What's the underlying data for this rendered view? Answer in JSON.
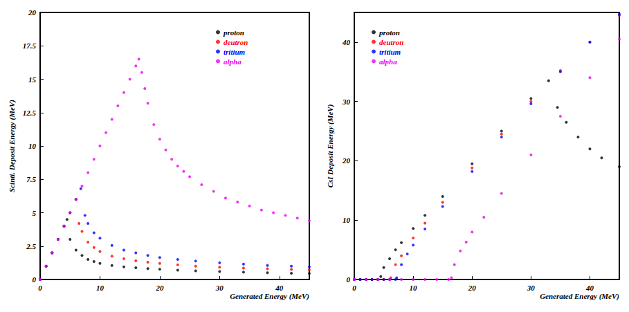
{
  "chart_data": [
    {
      "type": "scatter",
      "x_label": "Generated Energy (MeV)",
      "y_label": "Scinti. Deposit Energy (MeV)",
      "xlim": [
        0,
        45
      ],
      "xticks": [
        0,
        10,
        20,
        30,
        40
      ],
      "ylim": [
        0,
        20
      ],
      "yticks": [
        0,
        2.5,
        5,
        7.5,
        10,
        12.5,
        15,
        17.5,
        20
      ],
      "grid": false,
      "legend": "top-right",
      "marker": "circle",
      "series": [
        {
          "name": "proton",
          "color": "#000000",
          "x": [
            0,
            1,
            2,
            3,
            4,
            4.5,
            5,
            6,
            7,
            8,
            9,
            10,
            12,
            14,
            16,
            18,
            20,
            23,
            26,
            30,
            34,
            38,
            42,
            45
          ],
          "values": [
            0,
            1,
            2,
            3,
            4,
            4.5,
            3.0,
            2.2,
            1.8,
            1.5,
            1.35,
            1.2,
            1.05,
            0.95,
            0.88,
            0.82,
            0.77,
            0.7,
            0.65,
            0.6,
            0.55,
            0.5,
            0.47,
            0.45
          ]
        },
        {
          "name": "deutron",
          "color": "#ff0000",
          "x": [
            0,
            1,
            2,
            3,
            4,
            5,
            6,
            6.5,
            7,
            8,
            9,
            10,
            12,
            14,
            16,
            18,
            20,
            23,
            26,
            30,
            34,
            38,
            42,
            45
          ],
          "values": [
            0,
            1,
            2,
            3,
            4,
            5,
            6,
            4.2,
            3.6,
            2.8,
            2.4,
            2.1,
            1.75,
            1.55,
            1.4,
            1.3,
            1.2,
            1.1,
            1.0,
            0.92,
            0.85,
            0.8,
            0.75,
            0.72
          ]
        },
        {
          "name": "tritium",
          "color": "#0000ff",
          "x": [
            0,
            1,
            2,
            3,
            4,
            5,
            6,
            6.8,
            7.5,
            8,
            9,
            10,
            12,
            14,
            16,
            18,
            20,
            23,
            26,
            30,
            34,
            38,
            42,
            45
          ],
          "values": [
            0,
            1,
            2,
            3,
            4,
            5,
            6,
            6.8,
            4.8,
            4.2,
            3.5,
            3.1,
            2.55,
            2.2,
            2.0,
            1.8,
            1.65,
            1.5,
            1.38,
            1.25,
            1.15,
            1.05,
            1.0,
            0.95
          ]
        },
        {
          "name": "alpha",
          "color": "#ee00ee",
          "x": [
            0,
            1,
            2,
            3,
            4,
            5,
            6,
            7,
            8,
            9,
            10,
            11,
            12,
            13,
            14,
            15,
            16,
            16.5,
            17,
            17.5,
            18,
            19,
            20,
            21,
            22,
            23,
            24,
            25,
            27,
            29,
            31,
            33,
            35,
            37,
            39,
            41,
            43,
            45
          ],
          "values": [
            0,
            1,
            2,
            3,
            4,
            5,
            6,
            7,
            8,
            9,
            10,
            11,
            12,
            13,
            14,
            15,
            16,
            16.5,
            15.5,
            14.3,
            13.2,
            11.6,
            10.5,
            9.7,
            9.0,
            8.5,
            8.1,
            7.7,
            7.1,
            6.6,
            6.1,
            5.8,
            5.5,
            5.2,
            5.0,
            4.8,
            4.6,
            4.4
          ]
        }
      ]
    },
    {
      "type": "scatter",
      "x_label": "Generated Energy (MeV)",
      "y_label": "CsI Deposit Energy (MeV)",
      "xlim": [
        0,
        45
      ],
      "xticks": [
        0,
        10,
        20,
        30,
        40
      ],
      "ylim": [
        0,
        45
      ],
      "yticks": [
        0,
        10,
        20,
        30,
        40
      ],
      "grid": false,
      "legend": "top-left",
      "marker": "circle",
      "series": [
        {
          "name": "proton",
          "color": "#000000",
          "x": [
            0,
            1,
            2,
            3,
            4,
            4.5,
            5,
            6,
            7,
            8,
            10,
            12,
            15,
            20,
            25,
            30,
            33,
            34.5,
            36,
            38,
            40,
            42,
            45
          ],
          "values": [
            0,
            0,
            0,
            0,
            0,
            0.5,
            2,
            3.5,
            5,
            6.2,
            8.6,
            10.8,
            14,
            19.5,
            25,
            30.5,
            33.5,
            29,
            26.5,
            24,
            22,
            20.5,
            19
          ]
        },
        {
          "name": "deutron",
          "color": "#ff0000",
          "x": [
            0,
            1,
            2,
            3,
            4,
            5,
            6,
            6.2,
            7,
            8,
            10,
            12,
            15,
            20,
            25,
            30,
            35,
            40,
            45
          ],
          "values": [
            0,
            0,
            0,
            0,
            0,
            0,
            0,
            0.3,
            2.5,
            4,
            7,
            9.5,
            13,
            18.8,
            24.5,
            30,
            35.2,
            40,
            44.5
          ]
        },
        {
          "name": "tritium",
          "color": "#0000ff",
          "x": [
            0,
            1,
            2,
            3,
            4,
            5,
            6,
            7,
            7.2,
            8,
            9,
            10,
            12,
            15,
            20,
            25,
            30,
            35,
            40,
            45
          ],
          "values": [
            0,
            0,
            0,
            0,
            0,
            0,
            0,
            0,
            0.3,
            2.5,
            4.3,
            5.8,
            8.5,
            12.3,
            18.2,
            24,
            29.6,
            35,
            40,
            44.7
          ]
        },
        {
          "name": "alpha",
          "color": "#ee00ee",
          "x": [
            0,
            2,
            4,
            6,
            8,
            10,
            12,
            14,
            16,
            16.5,
            17,
            18,
            19,
            20,
            22,
            25,
            30,
            35,
            40,
            45
          ],
          "values": [
            0,
            0,
            0,
            0,
            0,
            0,
            0,
            0,
            0,
            0.3,
            2.5,
            4.8,
            6.3,
            8,
            10.5,
            14.5,
            21,
            27.5,
            34,
            40.5
          ]
        }
      ]
    }
  ]
}
